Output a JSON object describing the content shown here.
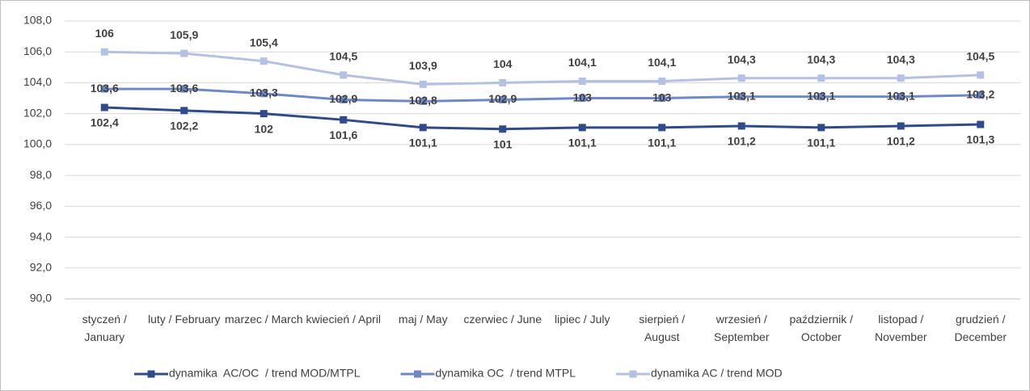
{
  "chart_data": {
    "type": "line",
    "categories": [
      "styczeń / January",
      "luty / February",
      "marzec / March",
      "kwiecień / April",
      "maj / May",
      "czerwiec / June",
      "lipiec / July",
      "sierpień / August",
      "wrzesień / September",
      "październik / October",
      "listopad / November",
      "grudzień / December"
    ],
    "series": [
      {
        "name": "dynamika  AC/OC  / trend MOD/MTPL",
        "color": "#2f4b8c",
        "values": [
          102.4,
          102.2,
          102,
          101.6,
          101.1,
          101,
          101.1,
          101.1,
          101.2,
          101.1,
          101.2,
          101.3
        ],
        "value_labels": [
          "102,4",
          "102,2",
          "102",
          "101,6",
          "101,1",
          "101",
          "101,1",
          "101,1",
          "101,2",
          "101,1",
          "101,2",
          "101,3"
        ]
      },
      {
        "name": "dynamika OC  / trend MTPL",
        "color": "#6f89c6",
        "values": [
          103.6,
          103.6,
          103.3,
          102.9,
          102.8,
          102.9,
          103,
          103,
          103.1,
          103.1,
          103.1,
          103.2
        ],
        "value_labels": [
          "103,6",
          "103,6",
          "103,3",
          "102,9",
          "102,8",
          "102,9",
          "103",
          "103",
          "103,1",
          "103,1",
          "103,1",
          "103,2"
        ]
      },
      {
        "name": "dynamika AC / trend MOD",
        "color": "#b4c1e2",
        "values": [
          106,
          105.9,
          105.4,
          104.5,
          103.9,
          104,
          104.1,
          104.1,
          104.3,
          104.3,
          104.3,
          104.5
        ],
        "value_labels": [
          "106",
          "105,9",
          "105,4",
          "104,5",
          "103,9",
          "104",
          "104,1",
          "104,1",
          "104,3",
          "104,3",
          "104,3",
          "104,5"
        ]
      }
    ],
    "ylim": [
      90,
      108
    ],
    "yticks": [
      {
        "value": 90,
        "label": "90,0"
      },
      {
        "value": 92,
        "label": "92,0"
      },
      {
        "value": 94,
        "label": "94,0"
      },
      {
        "value": 96,
        "label": "96,0"
      },
      {
        "value": 98,
        "label": "98,0"
      },
      {
        "value": 100,
        "label": "100,0"
      },
      {
        "value": 102,
        "label": "102,0"
      },
      {
        "value": 104,
        "label": "104,0"
      },
      {
        "value": 106,
        "label": "106,0"
      },
      {
        "value": 108,
        "label": "108,0"
      }
    ],
    "grid": true,
    "legend": "bottom"
  }
}
